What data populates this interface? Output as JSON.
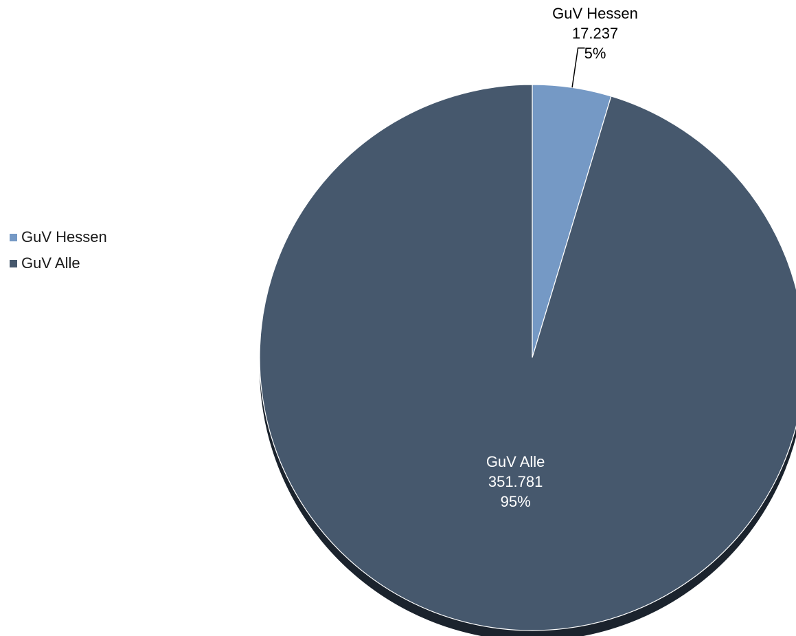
{
  "chart_data": {
    "type": "pie",
    "categories": [
      "GuV Hessen",
      "GuV Alle"
    ],
    "values": [
      17237,
      351781
    ],
    "value_labels": [
      "17.237",
      "351.781"
    ],
    "percent_labels": [
      "5%",
      "95%"
    ],
    "colors": [
      "#7599c5",
      "#46586d"
    ],
    "shadow_color": "#1b232d",
    "legend": {
      "placement": "left",
      "items": [
        {
          "label": "GuV Hessen",
          "color": "#7599c5"
        },
        {
          "label": "GuV Alle",
          "color": "#46586d"
        }
      ]
    },
    "title": ""
  }
}
